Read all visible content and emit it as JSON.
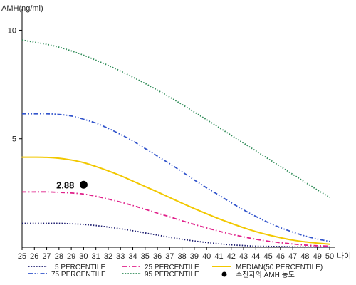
{
  "chart_data": {
    "type": "line",
    "ylabel": "AMH(ng/ml)",
    "xlabel": "나이",
    "x": [
      25,
      26,
      27,
      28,
      29,
      30,
      31,
      32,
      33,
      34,
      35,
      36,
      37,
      38,
      39,
      40,
      41,
      42,
      43,
      44,
      45,
      46,
      47,
      48,
      49,
      50
    ],
    "xlim": [
      25,
      50
    ],
    "ylim": [
      0,
      11
    ],
    "y_ticks": [
      5,
      10
    ],
    "grid": false,
    "legend_position": "bottom",
    "series": [
      {
        "name": "5 PERCENTILE",
        "color": "#1a1a6e",
        "dash": "dotted",
        "values": [
          1.1,
          1.1,
          1.1,
          1.1,
          1.08,
          1.05,
          1.0,
          0.93,
          0.85,
          0.76,
          0.66,
          0.56,
          0.46,
          0.37,
          0.29,
          0.22,
          0.16,
          0.11,
          0.08,
          0.05,
          0.04,
          0.03,
          0.02,
          0.02,
          0.01,
          0.01
        ]
      },
      {
        "name": "25 PERCENTILE",
        "color": "#e0208a",
        "dash": "dashdot",
        "values": [
          2.55,
          2.55,
          2.55,
          2.53,
          2.5,
          2.45,
          2.35,
          2.22,
          2.08,
          1.92,
          1.75,
          1.57,
          1.4,
          1.22,
          1.05,
          0.89,
          0.74,
          0.6,
          0.48,
          0.37,
          0.28,
          0.21,
          0.15,
          0.1,
          0.07,
          0.05
        ]
      },
      {
        "name": "MEDIAN(50 PERCENTILE)",
        "color": "#f2c800",
        "dash": "solid",
        "values": [
          4.15,
          4.15,
          4.14,
          4.1,
          4.02,
          3.9,
          3.72,
          3.52,
          3.3,
          3.05,
          2.8,
          2.55,
          2.29,
          2.03,
          1.78,
          1.54,
          1.31,
          1.1,
          0.9,
          0.72,
          0.57,
          0.44,
          0.33,
          0.25,
          0.19,
          0.14
        ]
      },
      {
        "name": "75 PERCENTILE",
        "color": "#3355cc",
        "dash": "dashdotdot",
        "values": [
          6.15,
          6.15,
          6.15,
          6.12,
          6.05,
          5.9,
          5.72,
          5.48,
          5.2,
          4.9,
          4.55,
          4.2,
          3.85,
          3.48,
          3.1,
          2.74,
          2.4,
          2.05,
          1.72,
          1.42,
          1.14,
          0.9,
          0.7,
          0.52,
          0.38,
          0.27
        ]
      },
      {
        "name": "95 PERCENTILE",
        "color": "#2e8b57",
        "dash": "dotted",
        "values": [
          9.55,
          9.45,
          9.35,
          9.22,
          9.05,
          8.85,
          8.62,
          8.38,
          8.12,
          7.84,
          7.55,
          7.24,
          6.92,
          6.58,
          6.23,
          5.88,
          5.52,
          5.16,
          4.8,
          4.44,
          4.08,
          3.72,
          3.36,
          3.0,
          2.64,
          2.3
        ]
      }
    ],
    "point": {
      "name": "수진자의 AMH 농도",
      "x": 30,
      "y": 2.88,
      "label": "2.88",
      "color": "#000000"
    }
  }
}
